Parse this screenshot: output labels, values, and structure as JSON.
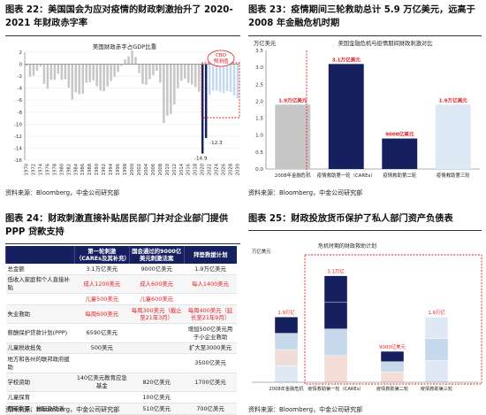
{
  "colors": {
    "navy": "#16205e",
    "gray": "#c6c6c6",
    "red": "#e21f26",
    "lightblue": "#c5d8ec"
  },
  "fig22": {
    "title": "图表 22：美国国会为应对疫情的财政刺激抬升了 2020-2021 年财政赤字率",
    "inner_title": "美国财政赤字占GDP比重",
    "cbo_note": "CBO 预测值",
    "source": "资料来源：Bloomberg，中金公司研究部",
    "chart_data": {
      "type": "bar",
      "title": "美国财政赤字占GDP比重",
      "ylim": [
        -16,
        2
      ],
      "yticks": [
        2,
        0,
        -2,
        -4,
        -6,
        -8,
        -10,
        -12,
        -14,
        -16
      ],
      "x": [
        1970,
        1971,
        1972,
        1973,
        1974,
        1975,
        1976,
        1977,
        1978,
        1979,
        1980,
        1981,
        1982,
        1983,
        1984,
        1985,
        1986,
        1987,
        1988,
        1989,
        1990,
        1991,
        1992,
        1993,
        1994,
        1995,
        1996,
        1997,
        1998,
        1999,
        2000,
        2001,
        2002,
        2003,
        2004,
        2005,
        2006,
        2007,
        2008,
        2009,
        2010,
        2011,
        2012,
        2013,
        2014,
        2015,
        2016,
        2017,
        2018,
        2019,
        2020,
        2021,
        2022,
        2023,
        2024,
        2025,
        2026,
        2027,
        2028,
        2029,
        2030
      ],
      "xtick_labels": [
        "1970",
        "1972",
        "1974",
        "1976",
        "1978",
        "1980",
        "1982",
        "1984",
        "1986",
        "1988",
        "1990",
        "1992",
        "1994",
        "1996",
        "1998",
        "2000",
        "2002",
        "2004",
        "2006",
        "2008",
        "2010",
        "2012",
        "2014",
        "2016",
        "2018",
        "2020",
        "2022",
        "2024",
        "2026",
        "2028",
        "2030"
      ],
      "values": [
        -0.3,
        -2.1,
        -1.9,
        -1.1,
        -0.4,
        -3.3,
        -4.1,
        -2.6,
        -2.6,
        -1.6,
        -2.6,
        -2.5,
        -3.9,
        -5.9,
        -4.7,
        -5.0,
        -4.9,
        -3.1,
        -3.0,
        -2.7,
        -3.7,
        -4.4,
        -4.5,
        -3.7,
        -2.8,
        -2.1,
        -1.3,
        -0.3,
        0.8,
        1.3,
        2.3,
        1.2,
        -1.5,
        -3.3,
        -3.4,
        -2.5,
        -1.8,
        -1.1,
        -3.1,
        -9.8,
        -8.6,
        -8.3,
        -6.7,
        -4.0,
        -2.8,
        -2.4,
        -3.1,
        -3.4,
        -3.8,
        -4.6,
        -14.9,
        -12.3,
        -5.1,
        -4.4,
        -4.4,
        -4.6,
        -4.8,
        -4.5,
        -4.6,
        -5.2,
        -5.7
      ],
      "highlight": [
        2020,
        2021
      ],
      "projection_from": 2022,
      "annotations": [
        {
          "x": 2020,
          "text": "-14.9"
        },
        {
          "x": 2021,
          "text": "-12.3"
        }
      ]
    }
  },
  "fig23": {
    "title": "图表 23：疫情期间三轮救助总计 5.9 万亿美元，远高于 2008 年金融危机时期",
    "inner_title": "美国金融危机与疫情期间财政刺激对比",
    "unit": "万亿美元",
    "source": "资料来源：Bloomberg，中金公司研究部",
    "chart_data": {
      "type": "bar",
      "title": "美国金融危机与疫情期间财政刺激对比",
      "ylabel": "万亿美元",
      "ylim": [
        0,
        3.5
      ],
      "yticks": [
        0,
        0.5,
        1.0,
        1.5,
        2.0,
        2.5,
        3.0,
        3.5
      ],
      "categories": [
        "2008年金融危机",
        "疫情救助第一轮（CAREs）",
        "疫情救助第二轮",
        "疫情救助第三轮"
      ],
      "values": [
        1.9,
        3.1,
        0.9,
        1.9
      ],
      "labels": [
        "1.9万亿美元",
        "3.1万亿美元",
        "9000亿美元",
        "1.9万亿美元"
      ],
      "colors": [
        "#c6c6c6",
        "#16205e",
        "#16205e",
        "#dce8f4"
      ]
    }
  },
  "fig24": {
    "title": "图表 24：财政刺激直接补贴居民部门并对企业部门提供 PPP 贷款支持",
    "headers": [
      "",
      "第一轮刺激（CAREs及其补充）",
      "国会通过的9000亿美元刺激法案",
      "拜登救援计划"
    ],
    "rows": [
      [
        "总金额",
        "3.1万亿美元",
        "9000亿美元",
        "1.9万亿美元"
      ],
      [
        "低收入家庭和个人直接补贴",
        "成人1200美元",
        "成人600美元",
        "每人1400美元"
      ],
      [
        "",
        "儿童500美元",
        "儿童600美元",
        ""
      ],
      [
        "失业救助",
        "每周600美元",
        "每周300美元（截止至21年3月）",
        "每周400美元（延长至21年9月）"
      ],
      [
        "薪酬保护贷款计划(PPP)",
        "6590亿美元",
        "",
        "增加500亿美元用于小企业救助"
      ],
      [
        "儿童税收抵免",
        "500美元",
        "",
        "扩大至3000美元"
      ],
      [
        "地方和各州的联邦政府援助",
        "",
        "",
        "3500亿美元"
      ],
      [
        "学校资助",
        "140亿美元教育应急基金",
        "820亿美元",
        "1700亿美元"
      ],
      [
        "儿童保育",
        "",
        "100亿美元",
        ""
      ],
      [
        "疫苗购买、分配及检测",
        "",
        "510亿美元",
        "700亿美元"
      ]
    ],
    "red_cells": [
      [
        1,
        1
      ],
      [
        1,
        2
      ],
      [
        1,
        3
      ],
      [
        2,
        1
      ],
      [
        2,
        2
      ],
      [
        3,
        1
      ],
      [
        3,
        2
      ],
      [
        3,
        3
      ]
    ],
    "source": "资料来源：Bloomberg，中金公司研究部"
  },
  "fig25": {
    "title": "图表 25：财政投放货币保护了私人部门资产负债表",
    "unit": "万亿美元",
    "crisis_label": "危机时期的财政救助计划",
    "source": "资料来源：Bloomberg，中金公司研究部",
    "chart_data": {
      "type": "bar",
      "ylabel": "万亿美元",
      "categories": [
        "2008年金融危机",
        "疫情救助第一轮（CAREs）",
        "疫情救助第二轮",
        "疫情救助第三轮"
      ],
      "values": [
        1.9,
        3.1,
        0.9,
        1.9
      ],
      "labels": [
        "1.9万亿",
        "3.1万亿",
        "9000亿美元",
        "1.9万亿"
      ]
    }
  }
}
